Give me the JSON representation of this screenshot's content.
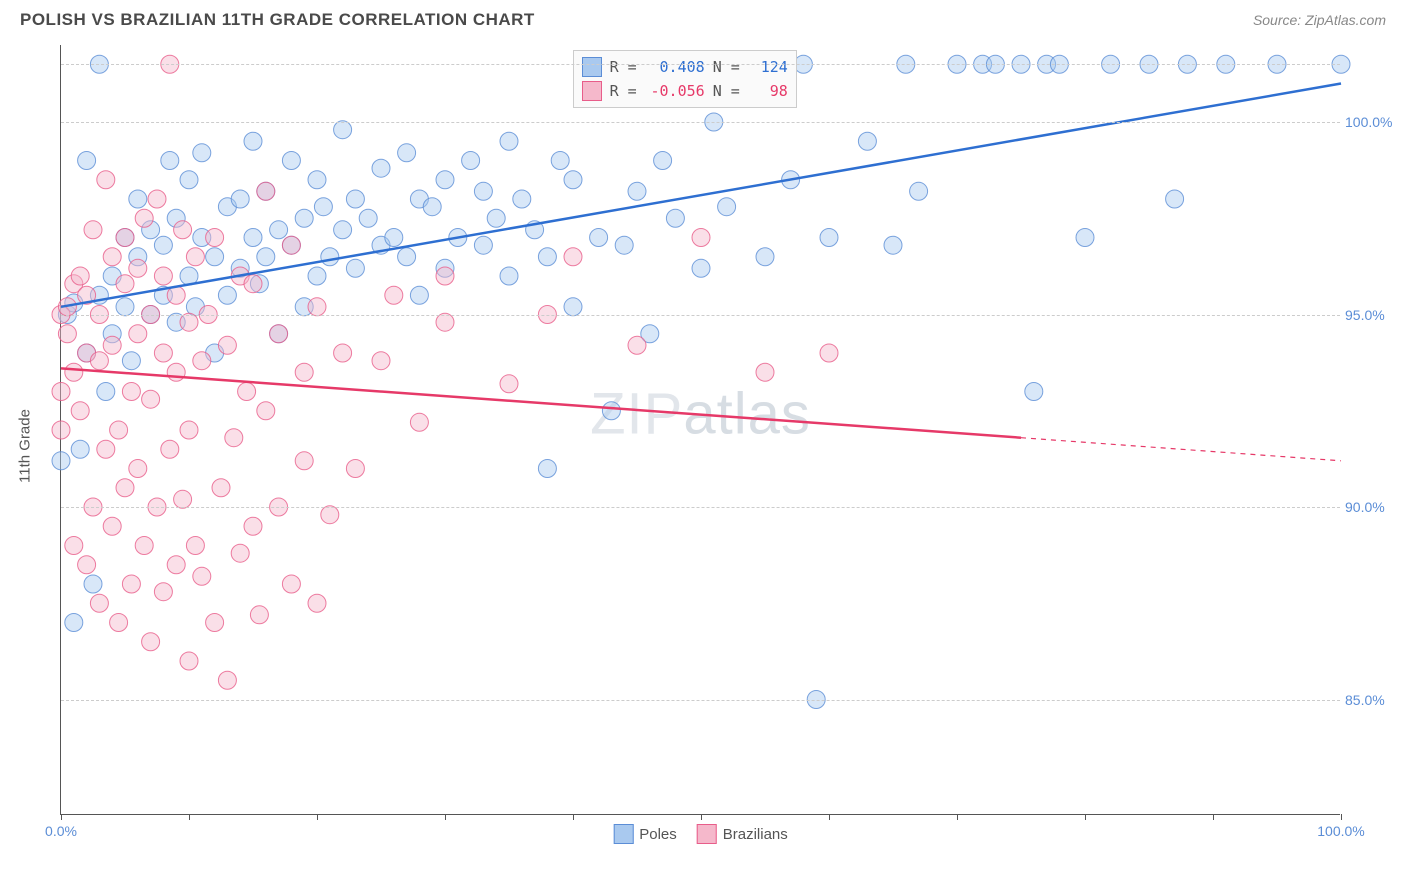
{
  "title": "POLISH VS BRAZILIAN 11TH GRADE CORRELATION CHART",
  "source": "Source: ZipAtlas.com",
  "y_axis_label": "11th Grade",
  "watermark": {
    "part1": "ZIP",
    "part2": "atlas"
  },
  "chart": {
    "type": "scatter",
    "xlim": [
      0,
      100
    ],
    "ylim": [
      82,
      102
    ],
    "x_ticks": [
      0,
      10,
      20,
      30,
      40,
      50,
      60,
      70,
      80,
      90,
      100
    ],
    "x_tick_labels": {
      "0": "0.0%",
      "100": "100.0%"
    },
    "y_ticks": [
      85,
      90,
      95,
      100
    ],
    "y_tick_labels": {
      "85": "85.0%",
      "90": "90.0%",
      "95": "95.0%",
      "100": "100.0%"
    },
    "grid_color": "#cccccc",
    "background_color": "#ffffff",
    "axis_label_color": "#5b8dd6",
    "marker_radius": 9,
    "marker_opacity": 0.45,
    "marker_stroke_opacity": 0.8,
    "line_width": 2.5
  },
  "series": [
    {
      "name": "Poles",
      "color_fill": "#a9c9ef",
      "color_stroke": "#5b8dd6",
      "line_color": "#2e6fd1",
      "R": "0.408",
      "N": "124",
      "trend": {
        "x1": 0,
        "y1": 95.2,
        "x2": 100,
        "y2": 101.0,
        "solid_until": 100
      },
      "points": [
        [
          0,
          91.2
        ],
        [
          0.5,
          95
        ],
        [
          1,
          87
        ],
        [
          1,
          95.3
        ],
        [
          1.5,
          91.5
        ],
        [
          2,
          94
        ],
        [
          2,
          99
        ],
        [
          2.5,
          88
        ],
        [
          3,
          95.5
        ],
        [
          3,
          101.5
        ],
        [
          3.5,
          93
        ],
        [
          4,
          96
        ],
        [
          4,
          94.5
        ],
        [
          5,
          97
        ],
        [
          5,
          95.2
        ],
        [
          5.5,
          93.8
        ],
        [
          6,
          96.5
        ],
        [
          6,
          98
        ],
        [
          7,
          95
        ],
        [
          7,
          97.2
        ],
        [
          8,
          96.8
        ],
        [
          8,
          95.5
        ],
        [
          8.5,
          99
        ],
        [
          9,
          97.5
        ],
        [
          9,
          94.8
        ],
        [
          10,
          96
        ],
        [
          10,
          98.5
        ],
        [
          10.5,
          95.2
        ],
        [
          11,
          97
        ],
        [
          11,
          99.2
        ],
        [
          12,
          96.5
        ],
        [
          12,
          94
        ],
        [
          13,
          97.8
        ],
        [
          13,
          95.5
        ],
        [
          14,
          96.2
        ],
        [
          14,
          98
        ],
        [
          15,
          97
        ],
        [
          15,
          99.5
        ],
        [
          15.5,
          95.8
        ],
        [
          16,
          96.5
        ],
        [
          16,
          98.2
        ],
        [
          17,
          97.2
        ],
        [
          17,
          94.5
        ],
        [
          18,
          96.8
        ],
        [
          18,
          99
        ],
        [
          19,
          97.5
        ],
        [
          19,
          95.2
        ],
        [
          20,
          96
        ],
        [
          20,
          98.5
        ],
        [
          20.5,
          97.8
        ],
        [
          21,
          96.5
        ],
        [
          22,
          97.2
        ],
        [
          22,
          99.8
        ],
        [
          23,
          98
        ],
        [
          23,
          96.2
        ],
        [
          24,
          97.5
        ],
        [
          25,
          96.8
        ],
        [
          25,
          98.8
        ],
        [
          26,
          97
        ],
        [
          27,
          96.5
        ],
        [
          27,
          99.2
        ],
        [
          28,
          98
        ],
        [
          28,
          95.5
        ],
        [
          29,
          97.8
        ],
        [
          30,
          96.2
        ],
        [
          30,
          98.5
        ],
        [
          31,
          97
        ],
        [
          32,
          99
        ],
        [
          33,
          96.8
        ],
        [
          33,
          98.2
        ],
        [
          34,
          97.5
        ],
        [
          35,
          96
        ],
        [
          35,
          99.5
        ],
        [
          36,
          98
        ],
        [
          37,
          97.2
        ],
        [
          38,
          91
        ],
        [
          38,
          96.5
        ],
        [
          39,
          99
        ],
        [
          40,
          95.2
        ],
        [
          40,
          98.5
        ],
        [
          42,
          97
        ],
        [
          43,
          92.5
        ],
        [
          43,
          101.5
        ],
        [
          44,
          96.8
        ],
        [
          45,
          98.2
        ],
        [
          46,
          94.5
        ],
        [
          47,
          99
        ],
        [
          48,
          97.5
        ],
        [
          50,
          96.2
        ],
        [
          50,
          101.5
        ],
        [
          51,
          100
        ],
        [
          52,
          97.8
        ],
        [
          55,
          96.5
        ],
        [
          57,
          98.5
        ],
        [
          58,
          101.5
        ],
        [
          59,
          85
        ],
        [
          60,
          97
        ],
        [
          63,
          99.5
        ],
        [
          65,
          96.8
        ],
        [
          66,
          101.5
        ],
        [
          67,
          98.2
        ],
        [
          70,
          101.5
        ],
        [
          72,
          101.5
        ],
        [
          73,
          101.5
        ],
        [
          75,
          101.5
        ],
        [
          76,
          93
        ],
        [
          77,
          101.5
        ],
        [
          78,
          101.5
        ],
        [
          80,
          97
        ],
        [
          82,
          101.5
        ],
        [
          85,
          101.5
        ],
        [
          87,
          98
        ],
        [
          88,
          101.5
        ],
        [
          91,
          101.5
        ],
        [
          95,
          101.5
        ],
        [
          100,
          101.5
        ]
      ]
    },
    {
      "name": "Brazilians",
      "color_fill": "#f5b8cb",
      "color_stroke": "#e85d8a",
      "line_color": "#e63968",
      "R": "-0.056",
      "N": "98",
      "trend": {
        "x1": 0,
        "y1": 93.6,
        "x2": 100,
        "y2": 91.2,
        "solid_until": 75
      },
      "points": [
        [
          0,
          95
        ],
        [
          0,
          93
        ],
        [
          0,
          92
        ],
        [
          0.5,
          94.5
        ],
        [
          0.5,
          95.2
        ],
        [
          1,
          95.8
        ],
        [
          1,
          93.5
        ],
        [
          1,
          89
        ],
        [
          1.5,
          92.5
        ],
        [
          1.5,
          96
        ],
        [
          2,
          94
        ],
        [
          2,
          88.5
        ],
        [
          2,
          95.5
        ],
        [
          2.5,
          90
        ],
        [
          2.5,
          97.2
        ],
        [
          3,
          93.8
        ],
        [
          3,
          87.5
        ],
        [
          3,
          95
        ],
        [
          3.5,
          91.5
        ],
        [
          3.5,
          98.5
        ],
        [
          4,
          96.5
        ],
        [
          4,
          89.5
        ],
        [
          4,
          94.2
        ],
        [
          4.5,
          87
        ],
        [
          4.5,
          92
        ],
        [
          5,
          95.8
        ],
        [
          5,
          90.5
        ],
        [
          5,
          97
        ],
        [
          5.5,
          93
        ],
        [
          5.5,
          88
        ],
        [
          6,
          96.2
        ],
        [
          6,
          91
        ],
        [
          6,
          94.5
        ],
        [
          6.5,
          89
        ],
        [
          6.5,
          97.5
        ],
        [
          7,
          95
        ],
        [
          7,
          86.5
        ],
        [
          7,
          92.8
        ],
        [
          7.5,
          90
        ],
        [
          7.5,
          98
        ],
        [
          8,
          94
        ],
        [
          8,
          87.8
        ],
        [
          8,
          96
        ],
        [
          8.5,
          91.5
        ],
        [
          8.5,
          101.5
        ],
        [
          9,
          93.5
        ],
        [
          9,
          88.5
        ],
        [
          9,
          95.5
        ],
        [
          9.5,
          90.2
        ],
        [
          9.5,
          97.2
        ],
        [
          10,
          94.8
        ],
        [
          10,
          86
        ],
        [
          10,
          92
        ],
        [
          10.5,
          89
        ],
        [
          10.5,
          96.5
        ],
        [
          11,
          93.8
        ],
        [
          11,
          88.2
        ],
        [
          11.5,
          95
        ],
        [
          12,
          87
        ],
        [
          12,
          97
        ],
        [
          12.5,
          90.5
        ],
        [
          13,
          94.2
        ],
        [
          13,
          85.5
        ],
        [
          13.5,
          91.8
        ],
        [
          14,
          96
        ],
        [
          14,
          88.8
        ],
        [
          14.5,
          93
        ],
        [
          15,
          89.5
        ],
        [
          15,
          95.8
        ],
        [
          15.5,
          87.2
        ],
        [
          16,
          92.5
        ],
        [
          16,
          98.2
        ],
        [
          17,
          90
        ],
        [
          17,
          94.5
        ],
        [
          18,
          88
        ],
        [
          18,
          96.8
        ],
        [
          19,
          91.2
        ],
        [
          19,
          93.5
        ],
        [
          20,
          87.5
        ],
        [
          20,
          95.2
        ],
        [
          21,
          89.8
        ],
        [
          22,
          94
        ],
        [
          23,
          91
        ],
        [
          25,
          93.8
        ],
        [
          26,
          95.5
        ],
        [
          28,
          92.2
        ],
        [
          30,
          96
        ],
        [
          30,
          94.8
        ],
        [
          35,
          93.2
        ],
        [
          38,
          95
        ],
        [
          40,
          96.5
        ],
        [
          45,
          94.2
        ],
        [
          50,
          97
        ],
        [
          55,
          93.5
        ],
        [
          60,
          94
        ]
      ]
    }
  ],
  "legend_top_labels": {
    "R": "R =",
    "N": "N ="
  },
  "legend_bottom": [
    {
      "label": "Poles",
      "swatch_fill": "#a9c9ef",
      "swatch_stroke": "#5b8dd6"
    },
    {
      "label": "Brazilians",
      "swatch_fill": "#f5b8cb",
      "swatch_stroke": "#e85d8a"
    }
  ]
}
